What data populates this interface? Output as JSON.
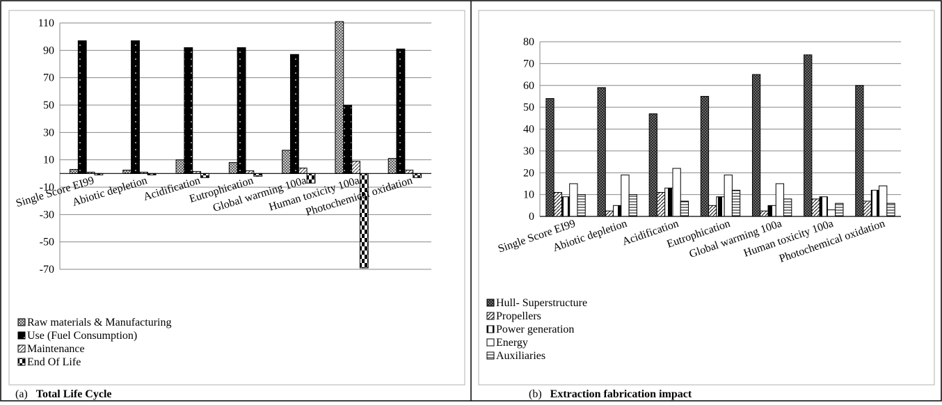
{
  "figure": {
    "panel_a": {
      "letter": "(a)",
      "caption": "Total Life Cycle"
    },
    "panel_b": {
      "letter": "(b)",
      "caption": "Extraction fabrication impact"
    }
  },
  "chart_data": [
    {
      "type": "bar",
      "title": "",
      "xlabel": "",
      "ylabel": "",
      "ylim": [
        -70,
        110
      ],
      "yticks": [
        110,
        90,
        70,
        50,
        30,
        10,
        -10,
        -30,
        -50,
        -70
      ],
      "grid": true,
      "legend_position": "bottom-left",
      "categories": [
        "Single Score EI99",
        "Abiotic depletion",
        "Acidification",
        "Eutrophication",
        "Global warming 100a",
        "Human toxicity 100a",
        "Photochemical oxidation"
      ],
      "series": [
        {
          "name": "Raw materials & Manufacturing",
          "pattern": "crosshatch-dense",
          "values": [
            3,
            2.5,
            10,
            8,
            17,
            111,
            11
          ]
        },
        {
          "name": "Use (Fuel Consumption)",
          "pattern": "black-dotted",
          "values": [
            97,
            97,
            92,
            92,
            87,
            50,
            91
          ]
        },
        {
          "name": "Maintenance",
          "pattern": "diagonal-hatch",
          "values": [
            1,
            1,
            1.5,
            2,
            4,
            9,
            2.5
          ]
        },
        {
          "name": "End Of Life",
          "pattern": "checker",
          "values": [
            -1,
            -1,
            -3,
            -2,
            -7,
            -69,
            -3
          ]
        }
      ]
    },
    {
      "type": "bar",
      "title": "",
      "xlabel": "",
      "ylabel": "",
      "ylim": [
        0,
        80
      ],
      "yticks": [
        80,
        70,
        60,
        50,
        40,
        30,
        20,
        10,
        0
      ],
      "grid": true,
      "legend_position": "bottom-left",
      "categories": [
        "Single Score EI99",
        "Abiotic depletion",
        "Acidification",
        "Eutrophication",
        "Global warming 100a",
        "Human toxicity 100a",
        "Photochemical oxidation"
      ],
      "series": [
        {
          "name": "Hull- Superstructure",
          "pattern": "crosshatch-dark",
          "values": [
            54,
            59,
            47,
            55,
            65,
            74,
            60
          ]
        },
        {
          "name": "Propellers",
          "pattern": "diagonal",
          "values": [
            11,
            2.5,
            11,
            5,
            2.5,
            8,
            7
          ]
        },
        {
          "name": "Power generation",
          "pattern": "half-black",
          "values": [
            9,
            5,
            13,
            9,
            5,
            9,
            12
          ]
        },
        {
          "name": "Energy",
          "pattern": "white",
          "values": [
            15,
            19,
            22,
            19,
            15,
            3,
            14
          ]
        },
        {
          "name": "Auxiliaries",
          "pattern": "horizontal-lines",
          "values": [
            10,
            10,
            7,
            12,
            8,
            6,
            6
          ]
        }
      ]
    }
  ]
}
